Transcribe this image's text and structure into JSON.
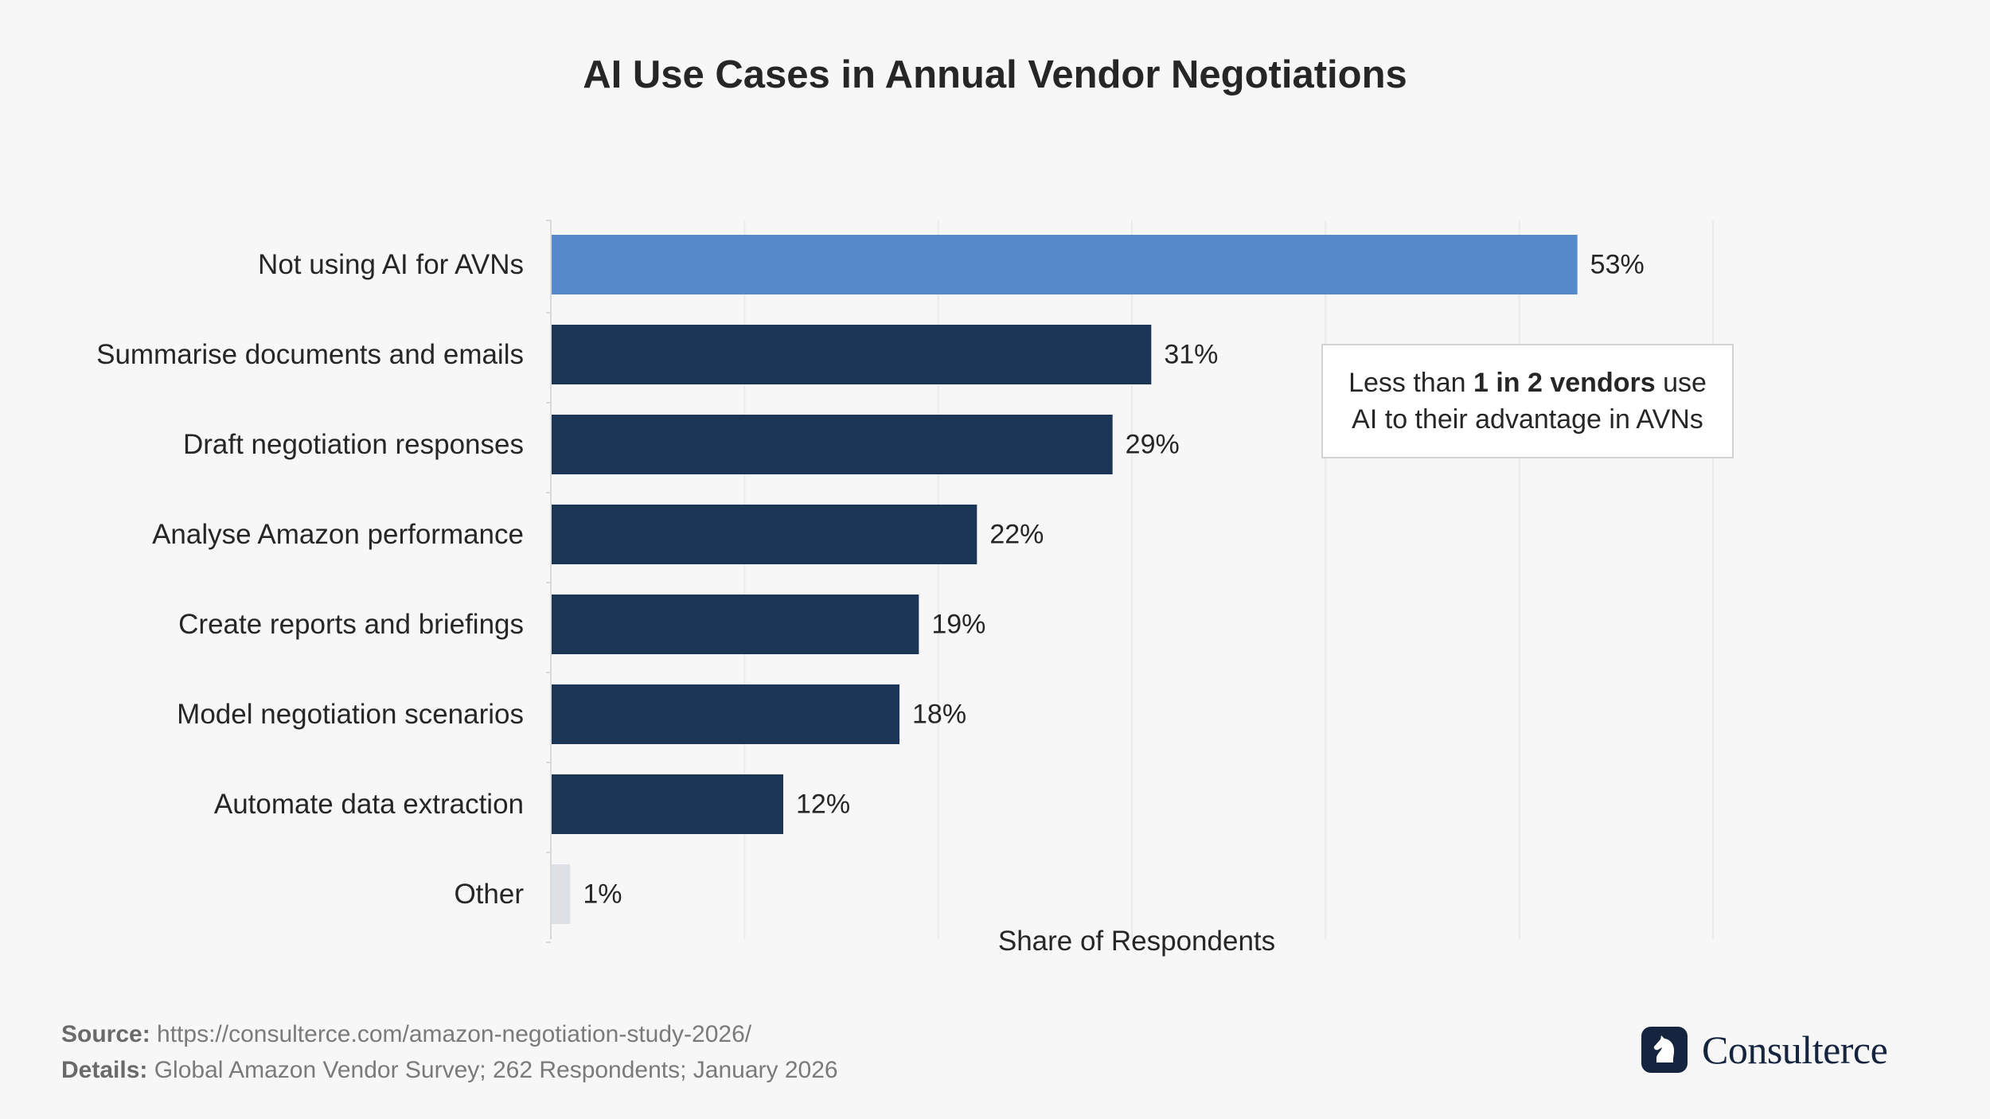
{
  "chart_data": {
    "type": "bar",
    "orientation": "horizontal",
    "title": "AI Use Cases in Annual Vendor Negotiations",
    "xlabel": "Share of Respondents",
    "ylabel": "",
    "categories": [
      "Not using AI for AVNs",
      "Summarise documents and emails",
      "Draft negotiation responses",
      "Analyse Amazon performance",
      "Create reports and briefings",
      "Model negotiation scenarios",
      "Automate data extraction",
      "Other"
    ],
    "values": [
      53,
      31,
      29,
      22,
      19,
      18,
      12,
      1
    ],
    "value_labels": [
      "53%",
      "31%",
      "29%",
      "22%",
      "19%",
      "18%",
      "12%",
      "1%"
    ],
    "colors": [
      "#5689c9",
      "#1b3556",
      "#1b3556",
      "#1b3556",
      "#1b3556",
      "#1b3556",
      "#1b3556",
      "#dde1e6"
    ],
    "xlim": [
      0,
      60
    ],
    "grid": true,
    "annotation": {
      "prefix": "Less than ",
      "bold": "1 in 2 vendors",
      "suffix": " use",
      "line2": "AI to their advantage in AVNs"
    }
  },
  "footer": {
    "source_label": "Source:",
    "source_text": " https://consulterce.com/amazon-negotiation-study-2026/",
    "details_label": "Details:",
    "details_text": " Global Amazon Vendor Survey; 262 Respondents; January 2026"
  },
  "brand": {
    "name": "Consulterce",
    "logo_icon": "chess-knight-icon",
    "color": "#15243f"
  }
}
